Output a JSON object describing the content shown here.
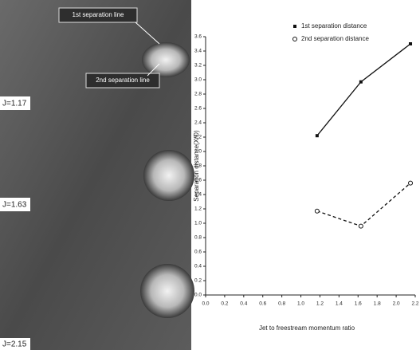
{
  "chart_data": {
    "type": "line",
    "xlabel": "Jet to freestream momentum ratio",
    "ylabel": "Separation distance(X/D)",
    "x": [
      1.17,
      1.63,
      2.15
    ],
    "series": [
      {
        "name": "1st separation distance",
        "color": "#111111",
        "values": [
          2.22,
          2.97,
          3.5
        ]
      },
      {
        "name": "2nd separation distance",
        "color": "#111111",
        "values": [
          1.17,
          0.96,
          1.56
        ]
      }
    ],
    "xlim": [
      0,
      2.2
    ],
    "xticks": [
      {
        "value": 0,
        "label": "0.0"
      },
      0.2,
      0.4,
      0.6,
      0.8,
      {
        "value": 1,
        "label": "1.0"
      },
      1.2,
      1.4,
      1.6,
      1.8,
      {
        "value": 2,
        "label": "2.0"
      },
      2.2
    ],
    "ylim": [
      0,
      3.6
    ],
    "yticks": [
      {
        "value": 0,
        "label": "0.0"
      },
      0.2,
      0.4,
      0.6,
      0.8,
      {
        "value": 1,
        "label": "1.0"
      },
      1.2,
      1.4,
      1.6,
      1.8,
      {
        "value": 2,
        "label": "2.0"
      },
      2.2,
      2.4,
      2.6,
      2.8,
      {
        "value": 3,
        "label": "3.0"
      },
      3.2,
      3.4,
      3.6
    ],
    "grid": false,
    "legend": "top"
  },
  "photo": {
    "callouts": [
      "1st separation line",
      "2nd separation line"
    ],
    "labels": [
      "J=1.17",
      "J=1.63",
      "J=2.15"
    ]
  }
}
